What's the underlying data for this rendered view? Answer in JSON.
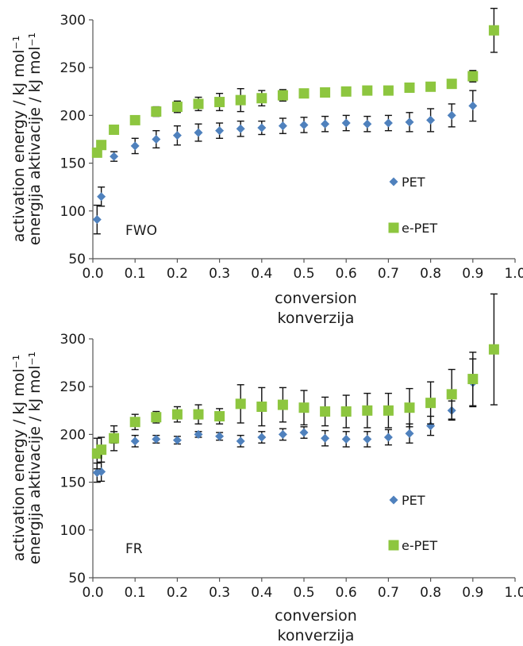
{
  "chart_data": [
    {
      "type": "scatter",
      "panel_label": "FWO",
      "xlabel": "conversion",
      "xlabel2": "konverzija",
      "ylabel": "activation energy / kJ mol⁻¹",
      "ylabel2": "energija aktivacije / kJ mol⁻¹",
      "xlim": [
        0.0,
        1.0
      ],
      "ylim": [
        50,
        300
      ],
      "x_ticks": [
        "0.0",
        "0.1",
        "0.2",
        "0.3",
        "0.4",
        "0.5",
        "0.6",
        "0.7",
        "0.8",
        "0.9",
        "1.0"
      ],
      "y_ticks": [
        "50",
        "100",
        "150",
        "200",
        "250",
        "300"
      ],
      "grid": false,
      "legend_position": "right",
      "series": [
        {
          "name": "PET",
          "marker": "diamond",
          "color": "#4f81bd",
          "x": [
            0.01,
            0.02,
            0.05,
            0.1,
            0.15,
            0.2,
            0.25,
            0.3,
            0.35,
            0.4,
            0.45,
            0.5,
            0.55,
            0.6,
            0.65,
            0.7,
            0.75,
            0.8,
            0.85,
            0.9
          ],
          "y": [
            91,
            115,
            157,
            168,
            175,
            179,
            182,
            184,
            186,
            187,
            189,
            190,
            191,
            192,
            191,
            192,
            193,
            195,
            200,
            210
          ],
          "err": [
            15,
            10,
            5,
            8,
            9,
            10,
            9,
            8,
            8,
            7,
            8,
            8,
            8,
            8,
            8,
            8,
            10,
            12,
            12,
            16
          ]
        },
        {
          "name": "e-PET",
          "marker": "square",
          "color": "#8dc63f",
          "x": [
            0.01,
            0.02,
            0.05,
            0.1,
            0.15,
            0.2,
            0.25,
            0.3,
            0.35,
            0.4,
            0.45,
            0.5,
            0.55,
            0.6,
            0.65,
            0.7,
            0.75,
            0.8,
            0.85,
            0.9,
            0.95
          ],
          "y": [
            161,
            169,
            185,
            195,
            204,
            209,
            212,
            214,
            216,
            218,
            221,
            223,
            224,
            225,
            226,
            226,
            229,
            230,
            233,
            241,
            289
          ],
          "err": [
            4,
            4,
            3,
            4,
            5,
            6,
            7,
            9,
            12,
            8,
            6,
            3,
            3,
            3,
            3,
            3,
            3,
            3,
            3,
            6,
            23
          ]
        }
      ]
    },
    {
      "type": "scatter",
      "panel_label": "FR",
      "xlabel": "conversion",
      "xlabel2": "konverzija",
      "ylabel": "activation energy / kJ mol⁻¹",
      "ylabel2": "energija aktivacije / kJ mol⁻¹",
      "xlim": [
        0.0,
        1.0
      ],
      "ylim": [
        50,
        300
      ],
      "x_ticks": [
        "0.0",
        "0.1",
        "0.2",
        "0.3",
        "0.4",
        "0.5",
        "0.6",
        "0.7",
        "0.8",
        "0.9",
        "1.0"
      ],
      "y_ticks": [
        "50",
        "100",
        "150",
        "200",
        "250",
        "300"
      ],
      "grid": false,
      "legend_position": "right",
      "series": [
        {
          "name": "PET",
          "marker": "diamond",
          "color": "#4f81bd",
          "x": [
            0.01,
            0.02,
            0.05,
            0.1,
            0.15,
            0.2,
            0.25,
            0.3,
            0.35,
            0.4,
            0.45,
            0.5,
            0.55,
            0.6,
            0.65,
            0.7,
            0.75,
            0.8,
            0.85,
            0.9
          ],
          "y": [
            160,
            161,
            197,
            193,
            195,
            194,
            200,
            198,
            193,
            197,
            200,
            202,
            196,
            195,
            195,
            197,
            201,
            209,
            225,
            254
          ],
          "err": [
            10,
            10,
            6,
            6,
            4,
            4,
            3,
            4,
            6,
            6,
            6,
            6,
            8,
            8,
            8,
            8,
            10,
            10,
            10,
            25
          ]
        },
        {
          "name": "e-PET",
          "marker": "square",
          "color": "#8dc63f",
          "x": [
            0.01,
            0.02,
            0.05,
            0.1,
            0.15,
            0.2,
            0.25,
            0.3,
            0.35,
            0.4,
            0.45,
            0.5,
            0.55,
            0.6,
            0.65,
            0.7,
            0.75,
            0.8,
            0.85,
            0.9,
            0.95
          ],
          "y": [
            180,
            184,
            196,
            213,
            218,
            221,
            221,
            219,
            232,
            229,
            231,
            228,
            224,
            224,
            225,
            225,
            228,
            233,
            242,
            258,
            289
          ],
          "err": [
            16,
            13,
            13,
            8,
            6,
            8,
            10,
            8,
            20,
            20,
            18,
            18,
            15,
            17,
            18,
            18,
            20,
            22,
            26,
            28,
            58
          ]
        }
      ]
    }
  ]
}
